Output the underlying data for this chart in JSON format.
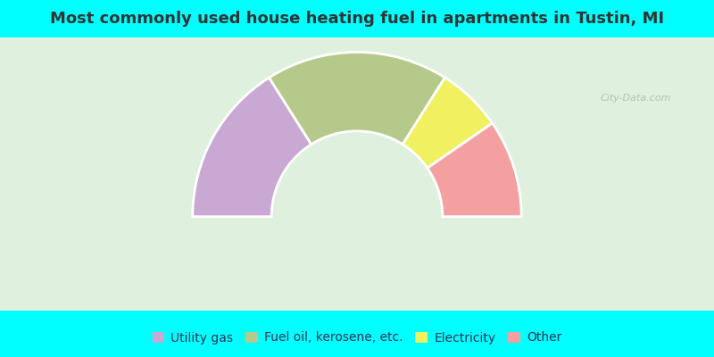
{
  "title": "Most commonly used house heating fuel in apartments in Tustin, MI",
  "title_fontsize": 13,
  "title_color": "#333333",
  "bg_top_color": "#00FFFF",
  "bg_chart_color_left": "#d4ecd4",
  "bg_chart_color_right": "#e8f5f0",
  "segments": [
    {
      "label": "Utility gas",
      "value": 2.5,
      "color": "#c9a8d4"
    },
    {
      "label": "Fuel oil, kerosene, etc.",
      "value": 2.8,
      "color": "#b5c98a"
    },
    {
      "label": "Electricity",
      "value": 1.0,
      "color": "#f0f060"
    },
    {
      "label": "Other",
      "value": 1.5,
      "color": "#f4a0a0"
    }
  ],
  "legend_fontsize": 10,
  "legend_text_color": "#333355",
  "watermark": "City-Data.com"
}
